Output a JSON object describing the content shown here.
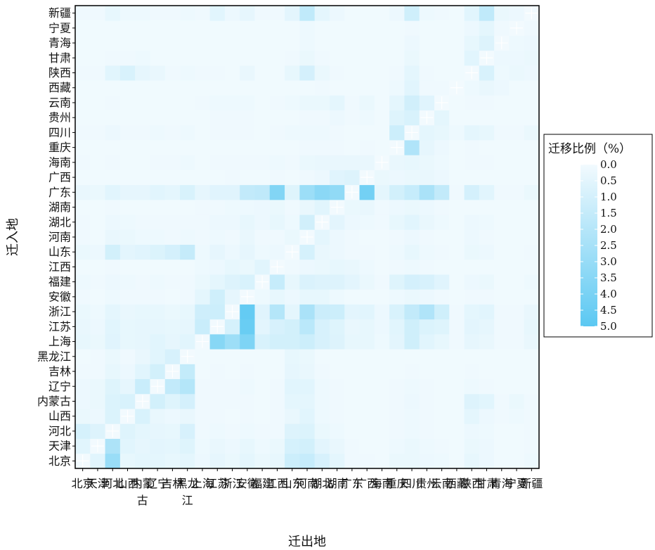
{
  "chart_data": {
    "type": "heatmap",
    "xlabel": "迁出地",
    "ylabel": "迁入地",
    "x_categories": [
      "北京",
      "天津",
      "河北",
      "山西",
      "内蒙古",
      "辽宁",
      "吉林",
      "黑龙江",
      "上海",
      "江苏",
      "浙江",
      "安徽",
      "福建",
      "江西",
      "山东",
      "河南",
      "湖北",
      "湖南",
      "广东",
      "广西",
      "海南",
      "重庆",
      "四川",
      "贵州",
      "云南",
      "西藏",
      "陕西",
      "甘肃",
      "青海",
      "宁夏",
      "新疆"
    ],
    "y_categories": [
      "北京",
      "天津",
      "河北",
      "山西",
      "内蒙古",
      "辽宁",
      "吉林",
      "黑龙江",
      "上海",
      "江苏",
      "浙江",
      "安徽",
      "福建",
      "江西",
      "山东",
      "河南",
      "湖北",
      "湖南",
      "广东",
      "广西",
      "海南",
      "重庆",
      "四川",
      "贵州",
      "云南",
      "西藏",
      "陕西",
      "甘肃",
      "青海",
      "宁夏",
      "新疆"
    ],
    "x_tick_labels": [
      "北京",
      "天津",
      "河北",
      "山西",
      "内蒙\n古",
      "辽宁",
      "吉林",
      "黑龙\n江",
      "上海",
      "江苏",
      "浙江",
      "安徽",
      "福建",
      "江西",
      "山东",
      "河南",
      "湖北",
      "湖南",
      "广东",
      "广西",
      "海南",
      "重庆",
      "四川",
      "贵州",
      "云南",
      "西藏",
      "陕西",
      "甘肃",
      "青海",
      "宁夏",
      "新疆"
    ],
    "diagonal_marked": true,
    "legend": {
      "title": "迁移比例（%）",
      "placement": "right",
      "range": [
        0.0,
        5.0
      ],
      "ticks": [
        "0.0",
        "0.5",
        "1.0",
        "1.5",
        "2.0",
        "2.5",
        "3.0",
        "3.5",
        "4.0",
        "4.5",
        "5.0"
      ]
    },
    "colors": {
      "low": "#f2fafe",
      "high": "#5bc8f2",
      "border": "#000000"
    },
    "values": [
      [
        0.0,
        0.55,
        2.95,
        0.35,
        0.45,
        0.45,
        0.35,
        0.45,
        0.2,
        0.4,
        0.25,
        0.45,
        0.25,
        0.35,
        1.25,
        1.45,
        0.9,
        0.45,
        0.1,
        0.1,
        0.05,
        0.25,
        0.25,
        0.2,
        0.15,
        0.05,
        0.35,
        0.2,
        0.05,
        0.05,
        0.15
      ],
      [
        0.55,
        0.0,
        2.3,
        0.55,
        0.4,
        0.5,
        0.45,
        0.65,
        0.15,
        0.3,
        0.2,
        0.35,
        0.15,
        0.25,
        0.95,
        1.05,
        0.5,
        0.3,
        0.1,
        0.05,
        0.05,
        0.15,
        0.25,
        0.15,
        0.1,
        0.05,
        0.25,
        0.2,
        0.05,
        0.05,
        0.1
      ],
      [
        0.95,
        0.7,
        0.0,
        0.65,
        0.45,
        0.4,
        0.35,
        0.9,
        0.1,
        0.15,
        0.1,
        0.15,
        0.1,
        0.1,
        0.7,
        0.75,
        0.25,
        0.15,
        0.05,
        0.05,
        0.05,
        0.1,
        0.15,
        0.1,
        0.05,
        0.05,
        0.2,
        0.15,
        0.05,
        0.05,
        0.1
      ],
      [
        0.25,
        0.2,
        0.75,
        0.0,
        0.85,
        0.3,
        0.2,
        0.3,
        0.1,
        0.1,
        0.05,
        0.1,
        0.05,
        0.1,
        0.3,
        0.55,
        0.15,
        0.1,
        0.05,
        0.05,
        0.05,
        0.1,
        0.15,
        0.1,
        0.05,
        0.05,
        0.45,
        0.2,
        0.1,
        0.15,
        0.1
      ],
      [
        0.2,
        0.25,
        0.75,
        0.85,
        0.0,
        1.05,
        0.65,
        1.0,
        0.1,
        0.1,
        0.1,
        0.1,
        0.05,
        0.1,
        0.45,
        0.45,
        0.15,
        0.1,
        0.05,
        0.05,
        0.05,
        0.1,
        0.2,
        0.1,
        0.05,
        0.05,
        0.7,
        0.55,
        0.1,
        0.25,
        0.1
      ],
      [
        0.2,
        0.25,
        0.65,
        0.4,
        1.35,
        0.0,
        1.6,
        2.05,
        0.1,
        0.1,
        0.1,
        0.15,
        0.05,
        0.1,
        0.55,
        0.55,
        0.15,
        0.1,
        0.05,
        0.05,
        0.05,
        0.1,
        0.15,
        0.1,
        0.05,
        0.05,
        0.15,
        0.1,
        0.05,
        0.05,
        0.05
      ],
      [
        0.1,
        0.1,
        0.35,
        0.2,
        0.55,
        1.05,
        0.0,
        1.55,
        0.05,
        0.1,
        0.05,
        0.1,
        0.05,
        0.05,
        0.4,
        0.3,
        0.1,
        0.05,
        0.05,
        0.05,
        0.05,
        0.05,
        0.1,
        0.05,
        0.05,
        0.05,
        0.1,
        0.05,
        0.05,
        0.05,
        0.05
      ],
      [
        0.05,
        0.1,
        0.25,
        0.1,
        0.3,
        0.55,
        0.9,
        0.0,
        0.05,
        0.05,
        0.05,
        0.05,
        0.05,
        0.05,
        0.35,
        0.25,
        0.05,
        0.05,
        0.05,
        0.05,
        0.05,
        0.05,
        0.05,
        0.05,
        0.05,
        0.05,
        0.05,
        0.05,
        0.05,
        0.05,
        0.05
      ],
      [
        0.35,
        0.25,
        0.6,
        0.35,
        0.4,
        0.55,
        0.4,
        0.55,
        0.0,
        3.55,
        2.8,
        3.85,
        0.85,
        1.05,
        1.05,
        1.25,
        0.9,
        0.7,
        0.35,
        0.35,
        0.15,
        0.5,
        1.15,
        0.55,
        0.35,
        0.1,
        0.4,
        0.3,
        0.1,
        0.1,
        0.3
      ],
      [
        0.3,
        0.2,
        0.55,
        0.35,
        0.4,
        0.4,
        0.35,
        0.4,
        1.35,
        0.0,
        0.95,
        4.55,
        0.5,
        0.9,
        1.05,
        1.85,
        0.9,
        0.65,
        0.3,
        0.35,
        0.2,
        0.55,
        1.15,
        0.75,
        0.65,
        0.1,
        0.5,
        0.4,
        0.1,
        0.1,
        0.35
      ],
      [
        0.25,
        0.15,
        0.45,
        0.3,
        0.35,
        0.35,
        0.25,
        0.35,
        1.2,
        1.25,
        0.0,
        4.7,
        0.6,
        2.05,
        0.45,
        2.4,
        1.3,
        1.25,
        0.5,
        0.55,
        0.2,
        0.85,
        1.6,
        2.2,
        1.15,
        0.1,
        0.45,
        0.55,
        0.1,
        0.1,
        0.3
      ],
      [
        0.1,
        0.05,
        0.15,
        0.1,
        0.1,
        0.1,
        0.05,
        0.1,
        0.45,
        1.15,
        0.4,
        0.0,
        0.15,
        0.35,
        0.2,
        0.35,
        0.35,
        0.15,
        0.05,
        0.05,
        0.05,
        0.15,
        0.25,
        0.2,
        0.1,
        0.05,
        0.1,
        0.1,
        0.05,
        0.05,
        0.05
      ],
      [
        0.15,
        0.1,
        0.2,
        0.15,
        0.1,
        0.15,
        0.1,
        0.1,
        0.25,
        0.45,
        0.7,
        0.85,
        0.0,
        1.45,
        0.35,
        0.8,
        0.7,
        0.7,
        0.5,
        0.25,
        0.1,
        0.65,
        1.0,
        0.9,
        0.6,
        0.05,
        0.2,
        0.25,
        0.05,
        0.05,
        0.15
      ],
      [
        0.05,
        0.05,
        0.1,
        0.05,
        0.05,
        0.05,
        0.05,
        0.05,
        0.15,
        0.2,
        0.35,
        0.25,
        0.55,
        0.0,
        0.1,
        0.2,
        0.25,
        0.35,
        0.3,
        0.15,
        0.05,
        0.1,
        0.15,
        0.1,
        0.05,
        0.05,
        0.05,
        0.05,
        0.05,
        0.05,
        0.05
      ],
      [
        0.25,
        0.2,
        1.05,
        0.5,
        0.6,
        0.75,
        1.0,
        1.5,
        0.15,
        0.4,
        0.2,
        0.4,
        0.15,
        0.2,
        0.0,
        0.95,
        0.3,
        0.2,
        0.1,
        0.1,
        0.05,
        0.15,
        0.35,
        0.15,
        0.1,
        0.05,
        0.25,
        0.2,
        0.05,
        0.05,
        0.1
      ],
      [
        0.1,
        0.05,
        0.3,
        0.25,
        0.15,
        0.15,
        0.1,
        0.15,
        0.1,
        0.15,
        0.1,
        0.3,
        0.1,
        0.1,
        0.25,
        0.0,
        0.45,
        0.2,
        0.1,
        0.05,
        0.05,
        0.1,
        0.2,
        0.1,
        0.05,
        0.05,
        0.2,
        0.1,
        0.05,
        0.05,
        0.05
      ],
      [
        0.1,
        0.05,
        0.2,
        0.15,
        0.1,
        0.1,
        0.1,
        0.1,
        0.1,
        0.2,
        0.2,
        0.35,
        0.2,
        0.35,
        0.15,
        1.1,
        0.0,
        0.5,
        0.2,
        0.15,
        0.1,
        0.35,
        0.55,
        0.3,
        0.15,
        0.05,
        0.2,
        0.15,
        0.05,
        0.05,
        0.05
      ],
      [
        0.05,
        0.05,
        0.1,
        0.05,
        0.05,
        0.05,
        0.05,
        0.05,
        0.1,
        0.1,
        0.15,
        0.15,
        0.2,
        0.25,
        0.1,
        0.3,
        0.55,
        0.0,
        0.25,
        0.3,
        0.1,
        0.2,
        0.25,
        0.2,
        0.1,
        0.05,
        0.05,
        0.05,
        0.05,
        0.05,
        0.05
      ],
      [
        0.3,
        0.25,
        0.55,
        0.4,
        0.4,
        0.55,
        0.45,
        0.85,
        0.4,
        0.6,
        0.6,
        1.6,
        1.7,
        3.7,
        0.65,
        2.85,
        3.4,
        3.2,
        0.0,
        4.2,
        0.45,
        1.05,
        1.45,
        2.4,
        1.6,
        0.1,
        1.0,
        0.55,
        0.1,
        0.1,
        0.25
      ],
      [
        0.05,
        0.05,
        0.05,
        0.05,
        0.05,
        0.05,
        0.05,
        0.05,
        0.05,
        0.05,
        0.1,
        0.05,
        0.05,
        0.1,
        0.05,
        0.1,
        0.2,
        0.6,
        0.7,
        0.0,
        0.25,
        0.2,
        0.25,
        0.3,
        0.2,
        0.05,
        0.05,
        0.05,
        0.05,
        0.05,
        0.05
      ],
      [
        0.1,
        0.05,
        0.1,
        0.05,
        0.05,
        0.1,
        0.1,
        0.15,
        0.05,
        0.1,
        0.1,
        0.1,
        0.1,
        0.15,
        0.1,
        0.25,
        0.3,
        0.3,
        0.3,
        0.3,
        0.0,
        0.3,
        0.35,
        0.25,
        0.15,
        0.05,
        0.1,
        0.1,
        0.05,
        0.05,
        0.05
      ],
      [
        0.05,
        0.05,
        0.05,
        0.05,
        0.05,
        0.05,
        0.05,
        0.05,
        0.05,
        0.05,
        0.05,
        0.05,
        0.05,
        0.05,
        0.05,
        0.1,
        0.1,
        0.1,
        0.05,
        0.1,
        0.05,
        0.0,
        2.2,
        0.4,
        0.2,
        0.05,
        0.1,
        0.05,
        0.05,
        0.05,
        0.05
      ],
      [
        0.1,
        0.1,
        0.2,
        0.1,
        0.1,
        0.15,
        0.1,
        0.15,
        0.05,
        0.1,
        0.1,
        0.1,
        0.05,
        0.1,
        0.15,
        0.15,
        0.15,
        0.1,
        0.05,
        0.05,
        0.05,
        1.25,
        0.0,
        0.45,
        0.35,
        0.15,
        0.45,
        0.35,
        0.1,
        0.1,
        0.25
      ],
      [
        0.05,
        0.05,
        0.05,
        0.05,
        0.05,
        0.05,
        0.05,
        0.05,
        0.05,
        0.1,
        0.1,
        0.1,
        0.05,
        0.05,
        0.05,
        0.1,
        0.1,
        0.2,
        0.1,
        0.15,
        0.05,
        0.65,
        0.85,
        0.0,
        0.45,
        0.05,
        0.05,
        0.05,
        0.05,
        0.05,
        0.05
      ],
      [
        0.05,
        0.05,
        0.1,
        0.05,
        0.05,
        0.05,
        0.05,
        0.05,
        0.1,
        0.15,
        0.15,
        0.15,
        0.05,
        0.1,
        0.15,
        0.25,
        0.25,
        0.45,
        0.1,
        0.25,
        0.05,
        0.45,
        1.1,
        0.6,
        0.0,
        0.05,
        0.1,
        0.1,
        0.05,
        0.05,
        0.05
      ],
      [
        0.05,
        0.05,
        0.05,
        0.05,
        0.05,
        0.05,
        0.05,
        0.05,
        0.05,
        0.05,
        0.05,
        0.05,
        0.05,
        0.05,
        0.05,
        0.05,
        0.1,
        0.05,
        0.05,
        0.05,
        0.05,
        0.15,
        0.55,
        0.1,
        0.1,
        0.0,
        0.15,
        0.3,
        0.2,
        0.05,
        0.05
      ],
      [
        0.1,
        0.1,
        0.55,
        0.85,
        0.4,
        0.3,
        0.1,
        0.15,
        0.1,
        0.1,
        0.05,
        0.3,
        0.05,
        0.05,
        0.35,
        1.0,
        0.25,
        0.1,
        0.05,
        0.05,
        0.05,
        0.1,
        0.45,
        0.1,
        0.05,
        0.05,
        0.0,
        0.85,
        0.15,
        0.25,
        0.2
      ],
      [
        0.05,
        0.05,
        0.1,
        0.1,
        0.15,
        0.05,
        0.05,
        0.05,
        0.05,
        0.05,
        0.05,
        0.05,
        0.05,
        0.05,
        0.1,
        0.25,
        0.1,
        0.05,
        0.05,
        0.05,
        0.05,
        0.05,
        0.25,
        0.05,
        0.05,
        0.05,
        0.55,
        0.0,
        0.2,
        0.2,
        0.25
      ],
      [
        0.05,
        0.05,
        0.05,
        0.05,
        0.05,
        0.05,
        0.05,
        0.05,
        0.05,
        0.05,
        0.05,
        0.05,
        0.05,
        0.05,
        0.05,
        0.15,
        0.05,
        0.05,
        0.05,
        0.05,
        0.05,
        0.05,
        0.2,
        0.05,
        0.05,
        0.05,
        0.35,
        0.7,
        0.0,
        0.15,
        0.2
      ],
      [
        0.05,
        0.05,
        0.05,
        0.05,
        0.05,
        0.05,
        0.05,
        0.05,
        0.05,
        0.05,
        0.05,
        0.05,
        0.05,
        0.05,
        0.05,
        0.15,
        0.05,
        0.05,
        0.05,
        0.05,
        0.05,
        0.05,
        0.1,
        0.05,
        0.05,
        0.05,
        0.2,
        0.45,
        0.1,
        0.0,
        0.1
      ],
      [
        0.1,
        0.1,
        0.35,
        0.15,
        0.15,
        0.1,
        0.1,
        0.15,
        0.1,
        0.55,
        0.2,
        0.4,
        0.1,
        0.1,
        0.5,
        1.65,
        0.45,
        0.2,
        0.05,
        0.05,
        0.05,
        0.2,
        1.15,
        0.15,
        0.1,
        0.05,
        0.55,
        1.65,
        0.25,
        0.2,
        0.0
      ]
    ]
  }
}
